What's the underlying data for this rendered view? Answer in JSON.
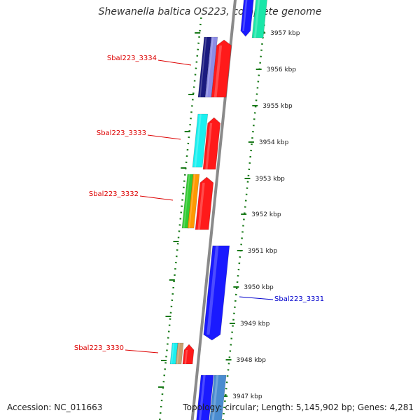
{
  "title": "Shewanella baltica OS223, complete genome",
  "footer": {
    "accession": "Accession: NC_011663",
    "summary": "Topology: circular; Length: 5,145,902 bp; Genes: 4,281"
  },
  "colors": {
    "backbone": "#8a8a8a",
    "tick": "#1a7a1a",
    "label_red": "#dd0000",
    "label_blue": "#0000cc",
    "red": "#ff1a1a",
    "blue": "#1a1aff",
    "navy": "#1a1a80",
    "lavender": "#8c8ce6",
    "cyan": "#1af0f0",
    "green": "#33cc33",
    "orange": "#ff9900",
    "teal": "#1ae6a8",
    "steel": "#4a8cd0",
    "tan": "#c8a070"
  },
  "ticks": [
    {
      "label": "3957 kbp"
    },
    {
      "label": "3956 kbp"
    },
    {
      "label": "3955 kbp"
    },
    {
      "label": "3954 kbp"
    },
    {
      "label": "3953 kbp"
    },
    {
      "label": "3952 kbp"
    },
    {
      "label": "3951 kbp"
    },
    {
      "label": "3950 kbp"
    },
    {
      "label": "3949 kbp"
    },
    {
      "label": "3948 kbp"
    },
    {
      "label": "3947 kbp"
    }
  ],
  "gene_labels": [
    {
      "text": "Sbal223_3334",
      "color": "red"
    },
    {
      "text": "Sbal223_3333",
      "color": "red"
    },
    {
      "text": "Sbal223_3332",
      "color": "red"
    },
    {
      "text": "Sbal223_3331",
      "color": "blue"
    },
    {
      "text": "Sbal223_3330",
      "color": "red"
    }
  ],
  "genes": [
    {
      "color": "blue",
      "strand": "reverse"
    },
    {
      "color": "teal",
      "strand": "forward"
    },
    {
      "color": "navy",
      "strand": "none"
    },
    {
      "color": "lavender",
      "strand": "none"
    },
    {
      "color": "red",
      "strand": "forward"
    },
    {
      "color": "cyan",
      "strand": "none"
    },
    {
      "color": "red",
      "strand": "forward"
    },
    {
      "color": "green",
      "strand": "none"
    },
    {
      "color": "orange",
      "strand": "none"
    },
    {
      "color": "red",
      "strand": "forward"
    },
    {
      "color": "blue",
      "strand": "reverse"
    },
    {
      "color": "cyan",
      "strand": "none"
    },
    {
      "color": "tan",
      "strand": "none"
    },
    {
      "color": "red",
      "strand": "forward"
    },
    {
      "color": "blue",
      "strand": "none"
    },
    {
      "color": "steel",
      "strand": "none"
    }
  ]
}
